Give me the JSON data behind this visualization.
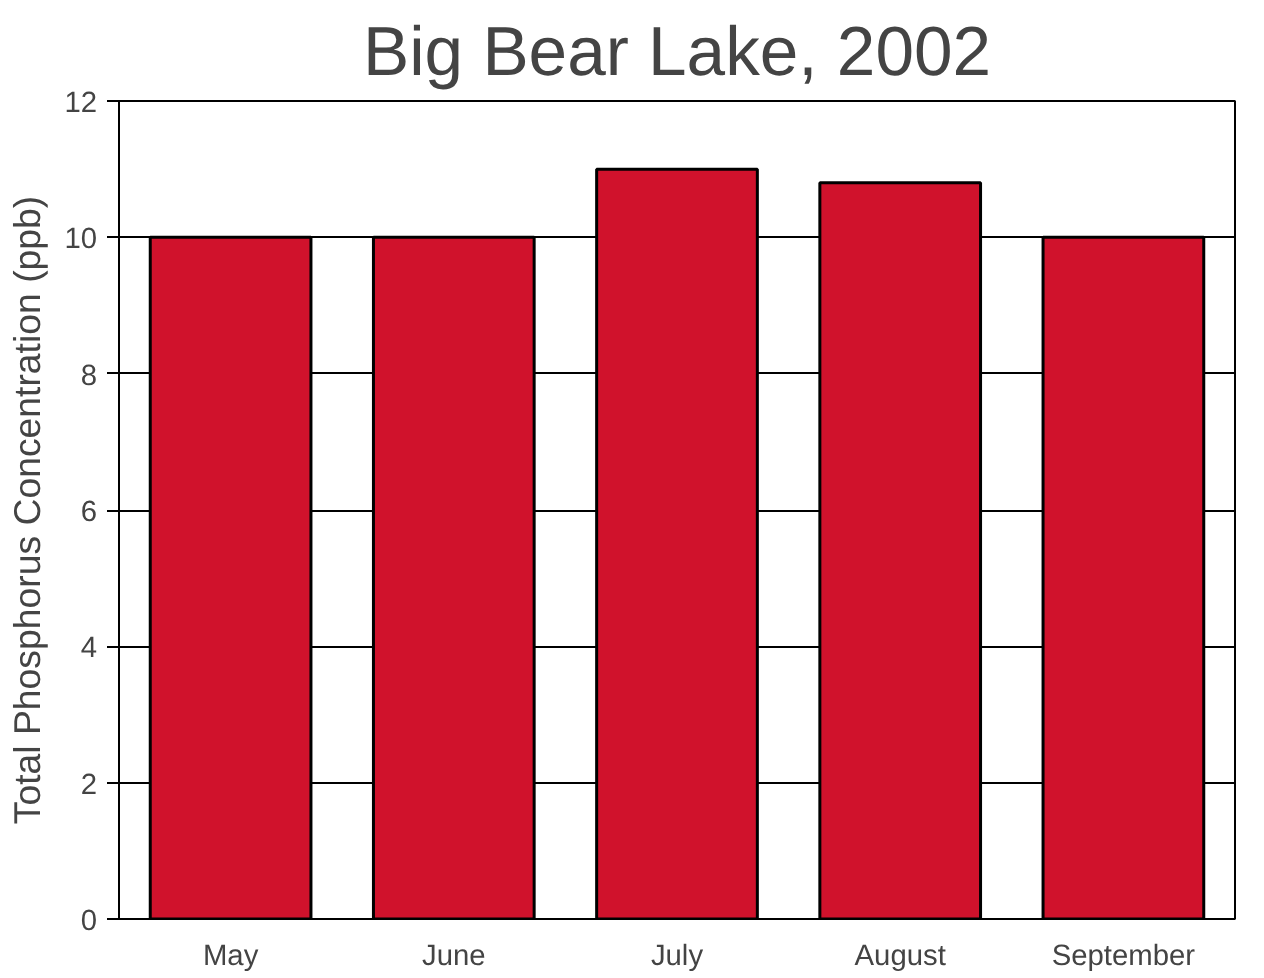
{
  "chart_data": {
    "type": "bar",
    "title": "Big Bear Lake, 2002",
    "ylabel": "Total Phosphorus Concentration (ppb)",
    "categories": [
      "May",
      "June",
      "July",
      "August",
      "September"
    ],
    "values": [
      10,
      10,
      11,
      10.8,
      10
    ],
    "color": "#d0122c",
    "ylim": [
      0,
      12
    ],
    "yticks": [
      0,
      2,
      4,
      6,
      8,
      10,
      12
    ],
    "grid": "y"
  }
}
